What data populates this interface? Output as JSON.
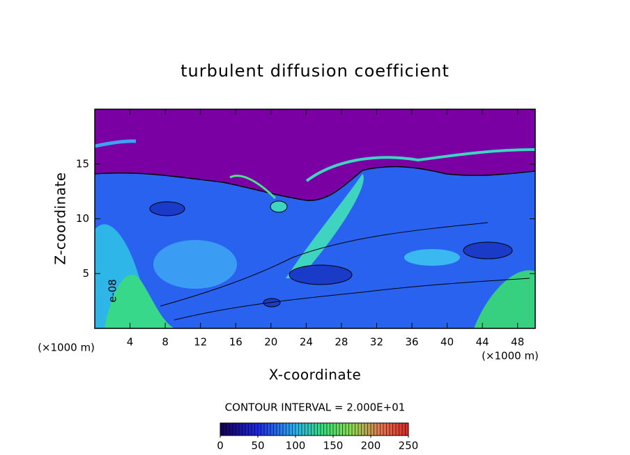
{
  "chart_data": {
    "type": "contour",
    "title": "turbulent diffusion coefficient",
    "x_label": "X-coordinate",
    "y_label": "Z-coordinate",
    "xlim": [
      0,
      50
    ],
    "xticks": [
      4,
      8,
      12,
      16,
      20,
      24,
      28,
      32,
      36,
      40,
      44,
      48
    ],
    "ylim": [
      0,
      20
    ],
    "yticks": [
      5,
      10,
      15
    ],
    "x_unit_label_left": "(×1000 m)",
    "x_unit_label_right": "(×1000 m)",
    "field_annotation": "e-08",
    "contour_interval_label": "CONTOUR INTERVAL = 2.000E+01",
    "colorbar": {
      "lim": [
        0,
        250
      ],
      "ticks": [
        0,
        50,
        100,
        150,
        200,
        250
      ]
    }
  }
}
